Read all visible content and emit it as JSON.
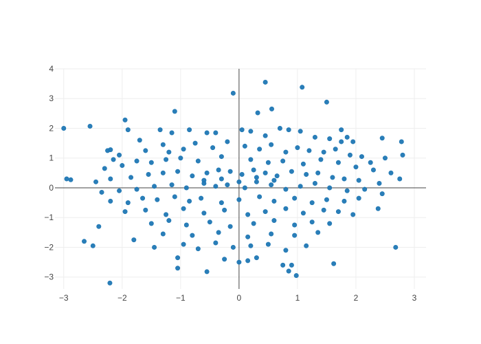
{
  "chart_data": {
    "type": "scatter",
    "title": "",
    "xlabel": "",
    "ylabel": "",
    "xlim": [
      -3.15,
      3.2
    ],
    "ylim": [
      -3.4,
      4
    ],
    "grid": true,
    "zero_lines": true,
    "legend": "none",
    "x_ticks": [
      "−3",
      "−2",
      "−1",
      "0",
      "1",
      "2",
      "3"
    ],
    "y_ticks": [
      "−3",
      "−2",
      "−1",
      "0",
      "1",
      "2",
      "3",
      "4"
    ],
    "marker_color": "#1f77b4",
    "series": [
      {
        "x": [
          -3.0,
          -2.55,
          -2.95,
          -2.88,
          -2.21,
          -2.2,
          -1.95,
          -1.1,
          -0.55,
          0.45,
          0.98,
          0.75,
          0.56,
          -0.1,
          1.08,
          1.5,
          0.32,
          2.45,
          2.38,
          2.8,
          2.78,
          1.62,
          2.68,
          -2.65,
          -2.5,
          -2.4,
          -1.8,
          -1.45,
          -1.05,
          -1.05,
          -0.25,
          0.0,
          0.15,
          0.3,
          0.85,
          0.9,
          -2.25,
          -1.9,
          -1.7,
          -1.35,
          -1.15,
          -0.85,
          -0.55,
          -0.4,
          0.05,
          0.2,
          0.45,
          0.7,
          0.85,
          1.05,
          1.3,
          1.55,
          1.75,
          1.85,
          1.95,
          1.75,
          -2.15,
          -2.05,
          -1.6,
          -1.3,
          -1.2,
          -0.95,
          -0.75,
          -0.45,
          -0.2,
          0.1,
          0.35,
          0.55,
          0.8,
          1.0,
          1.2,
          1.45,
          1.65,
          1.9,
          2.1,
          2.25,
          2.5,
          -2.3,
          -2.0,
          -1.75,
          -1.5,
          -1.25,
          -1.0,
          -0.7,
          -0.3,
          0.2,
          0.5,
          0.75,
          1.1,
          1.4,
          1.7,
          2.0,
          2.3,
          2.6,
          2.75,
          -2.45,
          -2.2,
          -1.85,
          -1.55,
          -1.3,
          -1.05,
          -0.8,
          -0.55,
          -0.35,
          -0.15,
          0.05,
          0.25,
          0.45,
          0.65,
          0.9,
          1.15,
          1.35,
          1.6,
          1.8,
          2.05,
          2.4,
          -2.35,
          -2.05,
          -1.75,
          -1.45,
          -1.15,
          -0.9,
          -0.6,
          -0.4,
          -0.2,
          0.1,
          0.3,
          0.55,
          0.8,
          1.05,
          1.3,
          1.55,
          1.85,
          2.15,
          2.45,
          -2.2,
          -1.9,
          -1.65,
          -1.4,
          -1.1,
          -0.85,
          -0.65,
          -0.3,
          0.0,
          0.35,
          0.6,
          0.95,
          1.25,
          1.5,
          1.8,
          2.05,
          -1.95,
          -1.6,
          -1.25,
          -0.95,
          -0.6,
          -0.25,
          0.15,
          0.45,
          0.8,
          1.1,
          1.45,
          1.7,
          1.95,
          -1.5,
          -1.2,
          -0.9,
          -0.5,
          -0.15,
          0.25,
          0.6,
          0.95,
          1.25,
          1.55,
          -1.3,
          -0.8,
          -0.35,
          0.15,
          0.55,
          0.95,
          1.35,
          -0.95,
          -0.7,
          -0.4,
          -0.1,
          0.2,
          0.5,
          0.8,
          1.15,
          -0.6,
          -0.3,
          0.0,
          0.3,
          0.6
        ],
        "y": [
          2.0,
          2.07,
          0.3,
          0.27,
          -3.2,
          1.28,
          2.28,
          2.57,
          -2.82,
          3.55,
          -2.95,
          -2.6,
          2.65,
          3.18,
          3.38,
          2.88,
          2.52,
          1.67,
          -0.7,
          1.1,
          1.55,
          -2.55,
          -2.0,
          -1.8,
          -1.95,
          -1.3,
          -1.75,
          -2.0,
          -2.7,
          -2.35,
          -2.4,
          -2.5,
          -2.45,
          -2.35,
          -2.8,
          -2.6,
          1.25,
          1.95,
          1.6,
          1.95,
          1.85,
          1.95,
          1.85,
          1.85,
          1.95,
          1.9,
          1.75,
          2.0,
          1.95,
          1.9,
          1.7,
          1.65,
          1.95,
          1.7,
          1.55,
          1.55,
          0.95,
          1.1,
          1.25,
          1.45,
          1.2,
          1.3,
          1.5,
          1.35,
          1.55,
          1.4,
          1.3,
          1.45,
          1.2,
          1.35,
          1.25,
          1.2,
          1.3,
          1.1,
          1.05,
          0.85,
          1.0,
          0.65,
          0.75,
          0.9,
          0.85,
          0.95,
          1.0,
          0.9,
          1.05,
          0.95,
          0.85,
          0.9,
          0.8,
          0.95,
          0.85,
          0.7,
          0.6,
          0.5,
          0.3,
          0.2,
          0.3,
          0.35,
          0.45,
          0.5,
          0.55,
          0.4,
          0.5,
          0.6,
          0.55,
          0.45,
          0.6,
          0.5,
          0.4,
          0.55,
          0.45,
          0.5,
          0.35,
          0.3,
          0.25,
          0.15,
          -0.15,
          -0.1,
          -0.05,
          0.05,
          0.1,
          0.0,
          0.15,
          0.05,
          0.1,
          0.0,
          0.2,
          0.1,
          -0.05,
          0.05,
          0.15,
          0.0,
          -0.1,
          -0.05,
          -0.2,
          -0.45,
          -0.5,
          -0.35,
          -0.4,
          -0.3,
          -0.45,
          -0.35,
          -0.5,
          -0.4,
          -0.3,
          -0.45,
          -0.35,
          -0.5,
          -0.4,
          -0.45,
          -0.35,
          -0.8,
          -0.75,
          -0.9,
          -0.7,
          -0.85,
          -0.75,
          -0.9,
          -0.8,
          -0.7,
          -0.85,
          -0.75,
          -0.8,
          -0.9,
          -1.2,
          -1.1,
          -1.25,
          -1.15,
          -1.3,
          -1.2,
          -1.1,
          -1.25,
          -1.15,
          -1.2,
          -1.55,
          -1.6,
          -1.5,
          -1.65,
          -1.55,
          -1.6,
          -1.5,
          -1.9,
          -2.05,
          -1.85,
          -2.0,
          -1.95,
          -1.9,
          -2.1,
          -1.95,
          0.25,
          0.3,
          0.2,
          0.35,
          0.25
        ]
      }
    ]
  }
}
